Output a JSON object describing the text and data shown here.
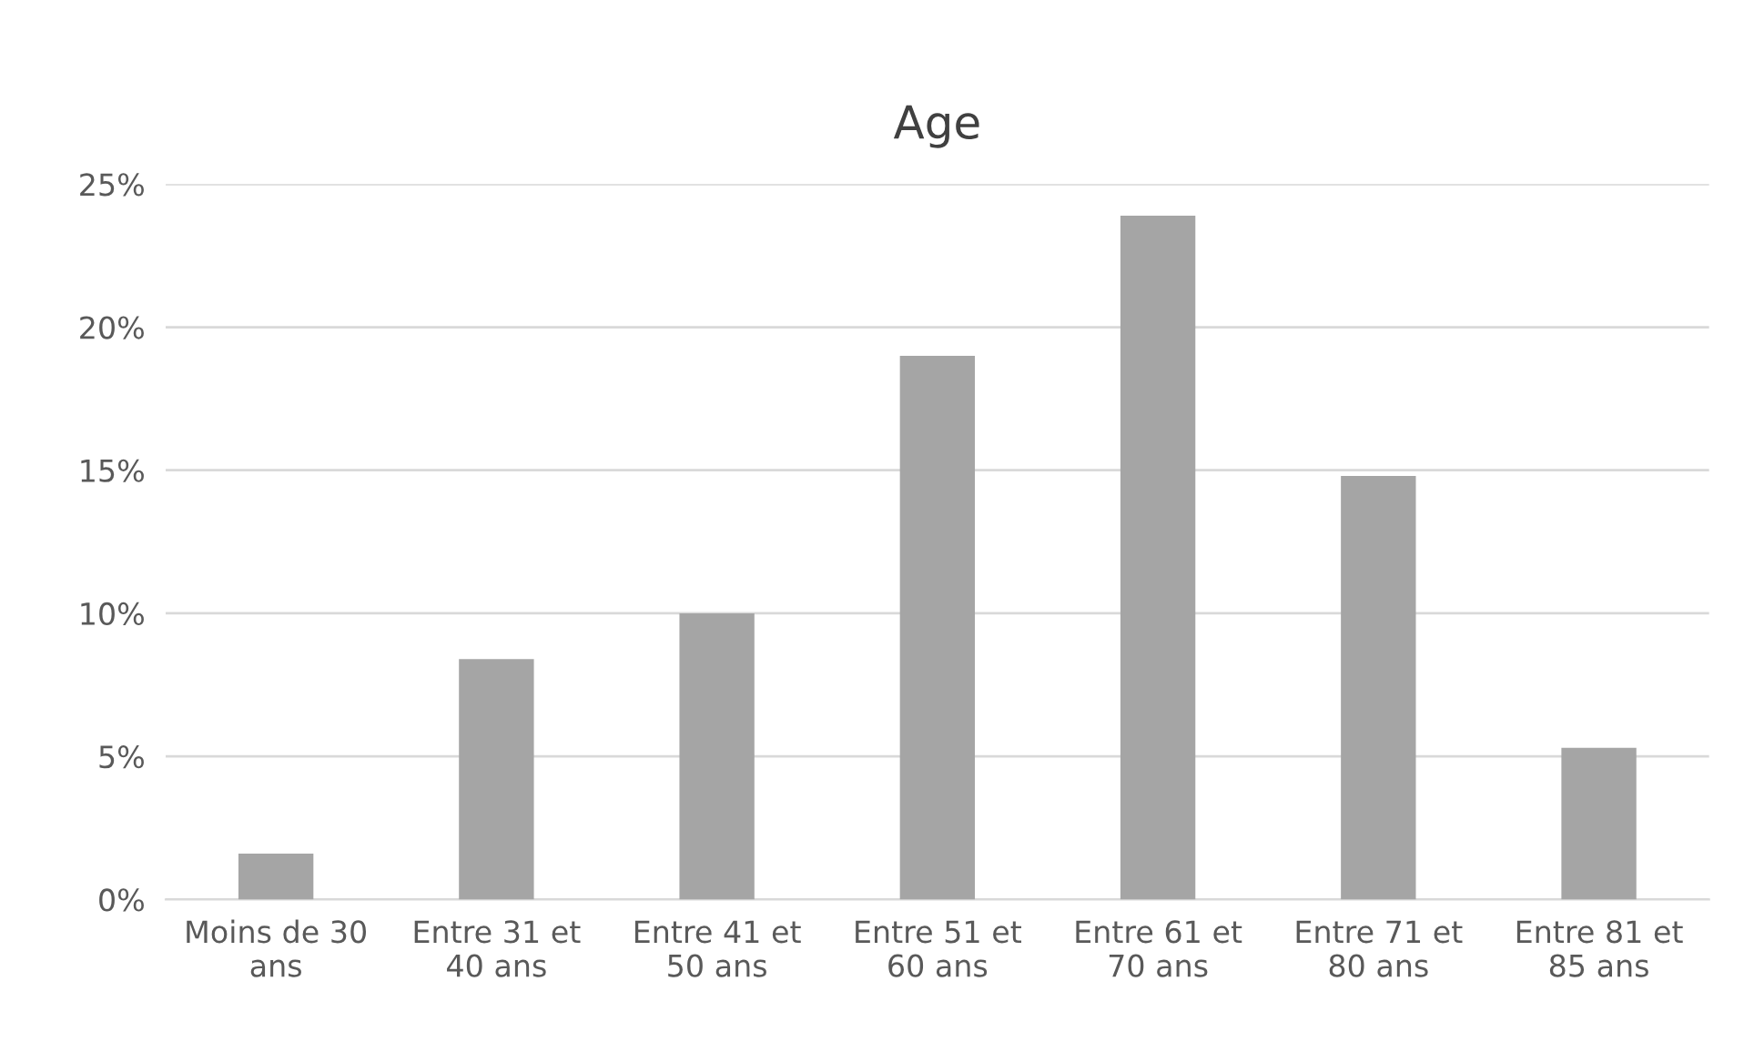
{
  "chart_data": {
    "type": "bar",
    "title": "Age",
    "categories": [
      "Moins de 30 ans",
      "Entre 31 et 40 ans",
      "Entre 41 et 50 ans",
      "Entre 51 et 60 ans",
      "Entre 61 et 70 ans",
      "Entre 71 et 80 ans",
      "Entre 81 et 85 ans"
    ],
    "values": [
      1.6,
      8.4,
      10.0,
      19.0,
      23.9,
      14.8,
      5.3
    ],
    "color": "#a5a5a5",
    "ylim": [
      0,
      25
    ],
    "yticks": [
      {
        "value": 0,
        "label": "0%"
      },
      {
        "value": 5,
        "label": "5%"
      },
      {
        "value": 10,
        "label": "10%"
      },
      {
        "value": 15,
        "label": "15%"
      },
      {
        "value": 20,
        "label": "20%"
      },
      {
        "value": 25,
        "label": "25%"
      }
    ],
    "grid": "y"
  }
}
